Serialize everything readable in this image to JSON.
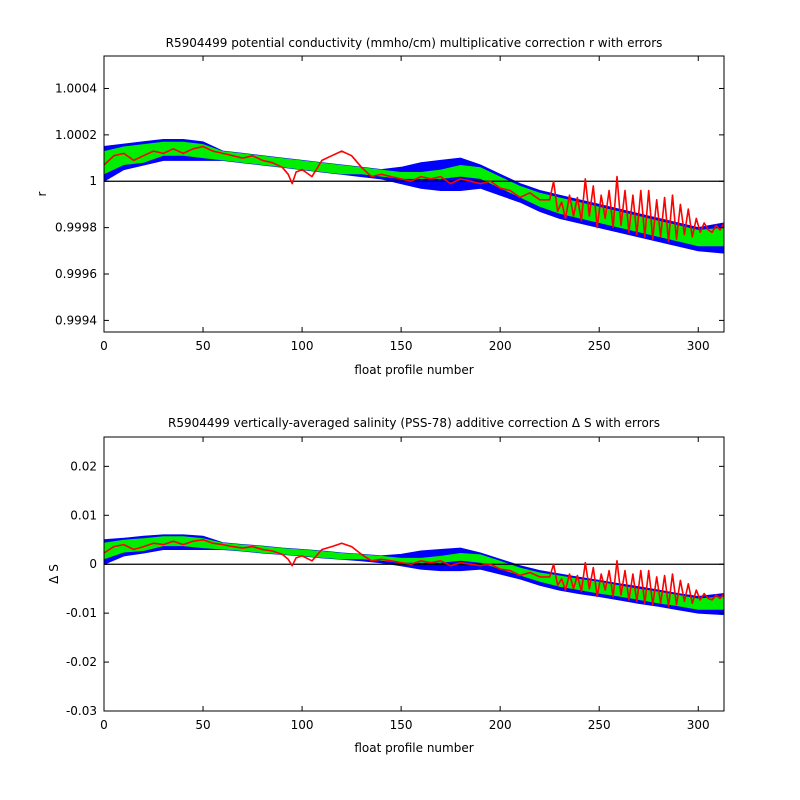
{
  "chart_data": [
    {
      "type": "area",
      "title": "R5904499 potential conductivity (mmho/cm) multiplicative correction r with errors",
      "xlabel": "float profile number",
      "ylabel": "r",
      "xlim": [
        0,
        313
      ],
      "ylim": [
        0.99935,
        1.00054
      ],
      "xticks": [
        0,
        50,
        100,
        150,
        200,
        250,
        300
      ],
      "yticks": [
        0.9994,
        0.9996,
        0.9998,
        1,
        1.0002,
        1.0004
      ],
      "ytick_labels": [
        "0.9994",
        "0.9996",
        "0.9998",
        "1",
        "1.0002",
        "1.0004"
      ],
      "reference_line": 1,
      "grid": false,
      "colors": {
        "outer_band": "#0000ff",
        "inner_band": "#00ee00",
        "series": "#ff0000",
        "reference": "#000000"
      },
      "x": [
        0,
        10,
        20,
        30,
        40,
        50,
        60,
        70,
        80,
        90,
        100,
        110,
        120,
        130,
        140,
        150,
        160,
        170,
        180,
        190,
        200,
        210,
        220,
        230,
        240,
        250,
        260,
        270,
        280,
        290,
        300,
        313
      ],
      "fit": [
        1.00008,
        1.00011,
        1.00012,
        1.00014,
        1.00014,
        1.00013,
        1.00011,
        1.0001,
        1.00009,
        1.00008,
        1.00007,
        1.00006,
        1.00005,
        1.00004,
        1.00003,
        1.00002,
        1.00002,
        1.00003,
        1.00005,
        1.00003,
        0.99999,
        0.99995,
        0.99992,
        0.99989,
        0.99987,
        0.99985,
        0.99983,
        0.99981,
        0.99979,
        0.99977,
        0.99975,
        0.99977
      ],
      "inner_band": [
        [
          1.00003,
          1.00013
        ],
        [
          1.00007,
          1.00015
        ],
        [
          1.00008,
          1.00016
        ],
        [
          1.00011,
          1.00017
        ],
        [
          1.00011,
          1.00017
        ],
        [
          1.0001,
          1.00016
        ],
        [
          1.00009,
          1.00013
        ],
        [
          1.00008,
          1.00012
        ],
        [
          1.00007,
          1.00011
        ],
        [
          1.00006,
          1.0001
        ],
        [
          1.00005,
          1.00009
        ],
        [
          1.00004,
          1.00008
        ],
        [
          1.00003,
          1.00007
        ],
        [
          1.00003,
          1.00006
        ],
        [
          1.00002,
          1.00005
        ],
        [
          1.00001,
          1.00004
        ],
        [
          1.00001,
          1.00004
        ],
        [
          1.00001,
          1.00005
        ],
        [
          1.00002,
          1.00007
        ],
        [
          1.00001,
          1.00006
        ],
        [
          0.99997,
          1.00002
        ],
        [
          0.99993,
          0.99998
        ],
        [
          0.99989,
          0.99995
        ],
        [
          0.99986,
          0.99993
        ],
        [
          0.99984,
          0.99991
        ],
        [
          0.99982,
          0.99989
        ],
        [
          0.9998,
          0.99987
        ],
        [
          0.99978,
          0.99985
        ],
        [
          0.99976,
          0.99983
        ],
        [
          0.99974,
          0.99981
        ],
        [
          0.99972,
          0.99979
        ],
        [
          0.99972,
          0.9998
        ]
      ],
      "outer_band": [
        [
          1.0,
          1.00015
        ],
        [
          1.00005,
          1.00016
        ],
        [
          1.00007,
          1.00017
        ],
        [
          1.00009,
          1.00018
        ],
        [
          1.00009,
          1.00018
        ],
        [
          1.00009,
          1.00017
        ],
        [
          1.00009,
          1.00013
        ],
        [
          1.00008,
          1.00012
        ],
        [
          1.00007,
          1.00011
        ],
        [
          1.00006,
          1.0001
        ],
        [
          1.00005,
          1.00009
        ],
        [
          1.00004,
          1.00008
        ],
        [
          1.00003,
          1.00007
        ],
        [
          1.00002,
          1.00006
        ],
        [
          1.00001,
          1.00005
        ],
        [
          0.99999,
          1.00006
        ],
        [
          0.99997,
          1.00008
        ],
        [
          0.99996,
          1.00009
        ],
        [
          0.99996,
          1.0001
        ],
        [
          0.99997,
          1.00007
        ],
        [
          0.99994,
          1.00003
        ],
        [
          0.99991,
          0.99999
        ],
        [
          0.99987,
          0.99996
        ],
        [
          0.99984,
          0.99994
        ],
        [
          0.99982,
          0.99992
        ],
        [
          0.9998,
          0.9999
        ],
        [
          0.99978,
          0.99988
        ],
        [
          0.99976,
          0.99986
        ],
        [
          0.99974,
          0.99984
        ],
        [
          0.99972,
          0.99982
        ],
        [
          0.9997,
          0.9998
        ],
        [
          0.99969,
          0.99982
        ]
      ],
      "series": [
        {
          "x": [
            0,
            5,
            10,
            15,
            20,
            25,
            30,
            35,
            40,
            45,
            50,
            55,
            60,
            65,
            70,
            75,
            80,
            85,
            90,
            93,
            95,
            97,
            100,
            105,
            110,
            115,
            120,
            125,
            130,
            135,
            140,
            145,
            150,
            155,
            160,
            165,
            170,
            175,
            180,
            185,
            190,
            195,
            200,
            205,
            210,
            215,
            220,
            225,
            227,
            229,
            231,
            233,
            235,
            237,
            239,
            241,
            243,
            245,
            247,
            249,
            251,
            253,
            255,
            257,
            259,
            261,
            263,
            265,
            267,
            269,
            271,
            273,
            275,
            277,
            279,
            281,
            283,
            285,
            287,
            289,
            291,
            293,
            295,
            297,
            299,
            301,
            303,
            305,
            307,
            309,
            311,
            313
          ],
          "y": [
            1.00007,
            1.00011,
            1.00012,
            1.00009,
            1.00011,
            1.00013,
            1.00012,
            1.00014,
            1.00012,
            1.00014,
            1.00015,
            1.00013,
            1.00012,
            1.00011,
            1.0001,
            1.00011,
            1.00009,
            1.00008,
            1.00006,
            1.00003,
            0.99999,
            1.00004,
            1.00005,
            1.00002,
            1.00009,
            1.00011,
            1.00013,
            1.00011,
            1.00006,
            1.00002,
            1.00003,
            1.00002,
            1.00001,
            1.0,
            1.00002,
            1.00001,
            1.00002,
            0.99999,
            1.00001,
            1.0,
            0.99999,
            1.0,
            0.99997,
            0.99996,
            0.99993,
            0.99995,
            0.99992,
            0.99992,
            1.0,
            0.99987,
            0.99991,
            0.99984,
            0.99994,
            0.99985,
            0.99993,
            0.99983,
            1.00001,
            0.99985,
            0.99998,
            0.9998,
            0.99994,
            0.99984,
            0.99996,
            0.9998,
            1.00002,
            0.99981,
            0.99996,
            0.99978,
            0.99994,
            0.99977,
            0.99996,
            0.99976,
            0.99996,
            0.99975,
            0.99992,
            0.99976,
            0.99993,
            0.99974,
            0.99994,
            0.99975,
            0.9999,
            0.99977,
            0.99988,
            0.99976,
            0.99984,
            0.99978,
            0.99982,
            0.99979,
            0.99978,
            0.99981,
            0.99979,
            0.99982
          ]
        }
      ]
    },
    {
      "type": "area",
      "title": "R5904499 vertically-averaged salinity (PSS-78) additive correction Δ S with errors",
      "xlabel": "float profile number",
      "ylabel": "Δ S",
      "xlim": [
        0,
        313
      ],
      "ylim": [
        -0.03,
        0.026
      ],
      "xticks": [
        0,
        50,
        100,
        150,
        200,
        250,
        300
      ],
      "yticks": [
        -0.03,
        -0.02,
        -0.01,
        0,
        0.01,
        0.02
      ],
      "ytick_labels": [
        "-0.03",
        "-0.02",
        "-0.01",
        "0",
        "0.01",
        "0.02"
      ],
      "reference_line": 0,
      "grid": false,
      "colors": {
        "outer_band": "#0000ff",
        "inner_band": "#00ee00",
        "series": "#ff0000",
        "reference": "#000000"
      },
      "x": [
        0,
        10,
        20,
        30,
        40,
        50,
        60,
        70,
        80,
        90,
        100,
        110,
        120,
        130,
        140,
        150,
        160,
        170,
        180,
        190,
        200,
        210,
        220,
        230,
        240,
        250,
        260,
        270,
        280,
        290,
        300,
        313
      ],
      "fit": [
        0.0027,
        0.0036,
        0.004,
        0.0045,
        0.0045,
        0.0043,
        0.0037,
        0.0033,
        0.003,
        0.0027,
        0.0023,
        0.002,
        0.0016,
        0.0013,
        0.001,
        0.0007,
        0.0007,
        0.001,
        0.0016,
        0.001,
        -0.0003,
        -0.0016,
        -0.0026,
        -0.0036,
        -0.0043,
        -0.005,
        -0.0056,
        -0.0063,
        -0.007,
        -0.0076,
        -0.0083,
        -0.0078
      ],
      "inner_band": [
        [
          0.001,
          0.0044
        ],
        [
          0.0024,
          0.005
        ],
        [
          0.0027,
          0.0053
        ],
        [
          0.0037,
          0.0057
        ],
        [
          0.0037,
          0.0057
        ],
        [
          0.0033,
          0.0053
        ],
        [
          0.003,
          0.0044
        ],
        [
          0.0027,
          0.004
        ],
        [
          0.0023,
          0.0037
        ],
        [
          0.002,
          0.0033
        ],
        [
          0.0017,
          0.003
        ],
        [
          0.0013,
          0.0027
        ],
        [
          0.001,
          0.0023
        ],
        [
          0.001,
          0.002
        ],
        [
          0.0007,
          0.0017
        ],
        [
          0.0003,
          0.0013
        ],
        [
          0.0003,
          0.0013
        ],
        [
          0.0003,
          0.0017
        ],
        [
          0.0007,
          0.0023
        ],
        [
          0.0003,
          0.002
        ],
        [
          -0.001,
          0.0007
        ],
        [
          -0.0023,
          -0.0007
        ],
        [
          -0.0036,
          -0.0017
        ],
        [
          -0.0046,
          -0.0023
        ],
        [
          -0.0053,
          -0.003
        ],
        [
          -0.006,
          -0.0036
        ],
        [
          -0.0066,
          -0.0043
        ],
        [
          -0.0073,
          -0.005
        ],
        [
          -0.008,
          -0.0056
        ],
        [
          -0.0086,
          -0.0063
        ],
        [
          -0.0093,
          -0.007
        ],
        [
          -0.0093,
          -0.0066
        ]
      ],
      "outer_band": [
        [
          0.0,
          0.005
        ],
        [
          0.0017,
          0.0053
        ],
        [
          0.0023,
          0.0057
        ],
        [
          0.003,
          0.006
        ],
        [
          0.003,
          0.006
        ],
        [
          0.003,
          0.0057
        ],
        [
          0.003,
          0.0044
        ],
        [
          0.0027,
          0.004
        ],
        [
          0.0023,
          0.0037
        ],
        [
          0.002,
          0.0033
        ],
        [
          0.0017,
          0.003
        ],
        [
          0.0013,
          0.0027
        ],
        [
          0.001,
          0.0023
        ],
        [
          0.0007,
          0.002
        ],
        [
          0.0003,
          0.0017
        ],
        [
          -0.0003,
          0.002
        ],
        [
          -0.001,
          0.0027
        ],
        [
          -0.0013,
          0.003
        ],
        [
          -0.0013,
          0.0033
        ],
        [
          -0.001,
          0.0023
        ],
        [
          -0.002,
          0.001
        ],
        [
          -0.003,
          -0.0003
        ],
        [
          -0.0043,
          -0.0013
        ],
        [
          -0.0053,
          -0.002
        ],
        [
          -0.006,
          -0.0027
        ],
        [
          -0.0066,
          -0.0033
        ],
        [
          -0.0073,
          -0.004
        ],
        [
          -0.008,
          -0.0046
        ],
        [
          -0.0086,
          -0.0053
        ],
        [
          -0.0093,
          -0.006
        ],
        [
          -0.01,
          -0.0066
        ],
        [
          -0.0103,
          -0.006
        ]
      ],
      "series": [
        {
          "x": [
            0,
            5,
            10,
            15,
            20,
            25,
            30,
            35,
            40,
            45,
            50,
            55,
            60,
            65,
            70,
            75,
            80,
            85,
            90,
            93,
            95,
            97,
            100,
            105,
            110,
            115,
            120,
            125,
            130,
            135,
            140,
            145,
            150,
            155,
            160,
            165,
            170,
            175,
            180,
            185,
            190,
            195,
            200,
            205,
            210,
            215,
            220,
            225,
            227,
            229,
            231,
            233,
            235,
            237,
            239,
            241,
            243,
            245,
            247,
            249,
            251,
            253,
            255,
            257,
            259,
            261,
            263,
            265,
            267,
            269,
            271,
            273,
            275,
            277,
            279,
            281,
            283,
            285,
            287,
            289,
            291,
            293,
            295,
            297,
            299,
            301,
            303,
            305,
            307,
            309,
            311,
            313
          ],
          "y": [
            0.0023,
            0.0036,
            0.004,
            0.003,
            0.0036,
            0.0043,
            0.004,
            0.0047,
            0.004,
            0.0047,
            0.005,
            0.0043,
            0.004,
            0.0036,
            0.0033,
            0.0036,
            0.003,
            0.0027,
            0.002,
            0.001,
            -0.0003,
            0.0013,
            0.0017,
            0.0007,
            0.003,
            0.0036,
            0.0043,
            0.0036,
            0.002,
            0.0007,
            0.001,
            0.0007,
            0.0003,
            0.0,
            0.0007,
            0.0003,
            0.0007,
            -0.0003,
            0.0003,
            0.0,
            -0.0003,
            0.0,
            -0.001,
            -0.0013,
            -0.0023,
            -0.0017,
            -0.0026,
            -0.0026,
            0.0,
            -0.0043,
            -0.003,
            -0.0053,
            -0.002,
            -0.005,
            -0.0023,
            -0.0056,
            0.0003,
            -0.005,
            -0.0007,
            -0.0066,
            -0.002,
            -0.0053,
            -0.0013,
            -0.0066,
            0.0007,
            -0.0063,
            -0.0013,
            -0.0073,
            -0.002,
            -0.0076,
            -0.0013,
            -0.008,
            -0.0013,
            -0.0083,
            -0.0026,
            -0.008,
            -0.0023,
            -0.0086,
            -0.002,
            -0.0083,
            -0.0033,
            -0.0076,
            -0.004,
            -0.008,
            -0.0053,
            -0.0073,
            -0.006,
            -0.007,
            -0.0073,
            -0.0063,
            -0.007,
            -0.006
          ]
        }
      ]
    }
  ]
}
